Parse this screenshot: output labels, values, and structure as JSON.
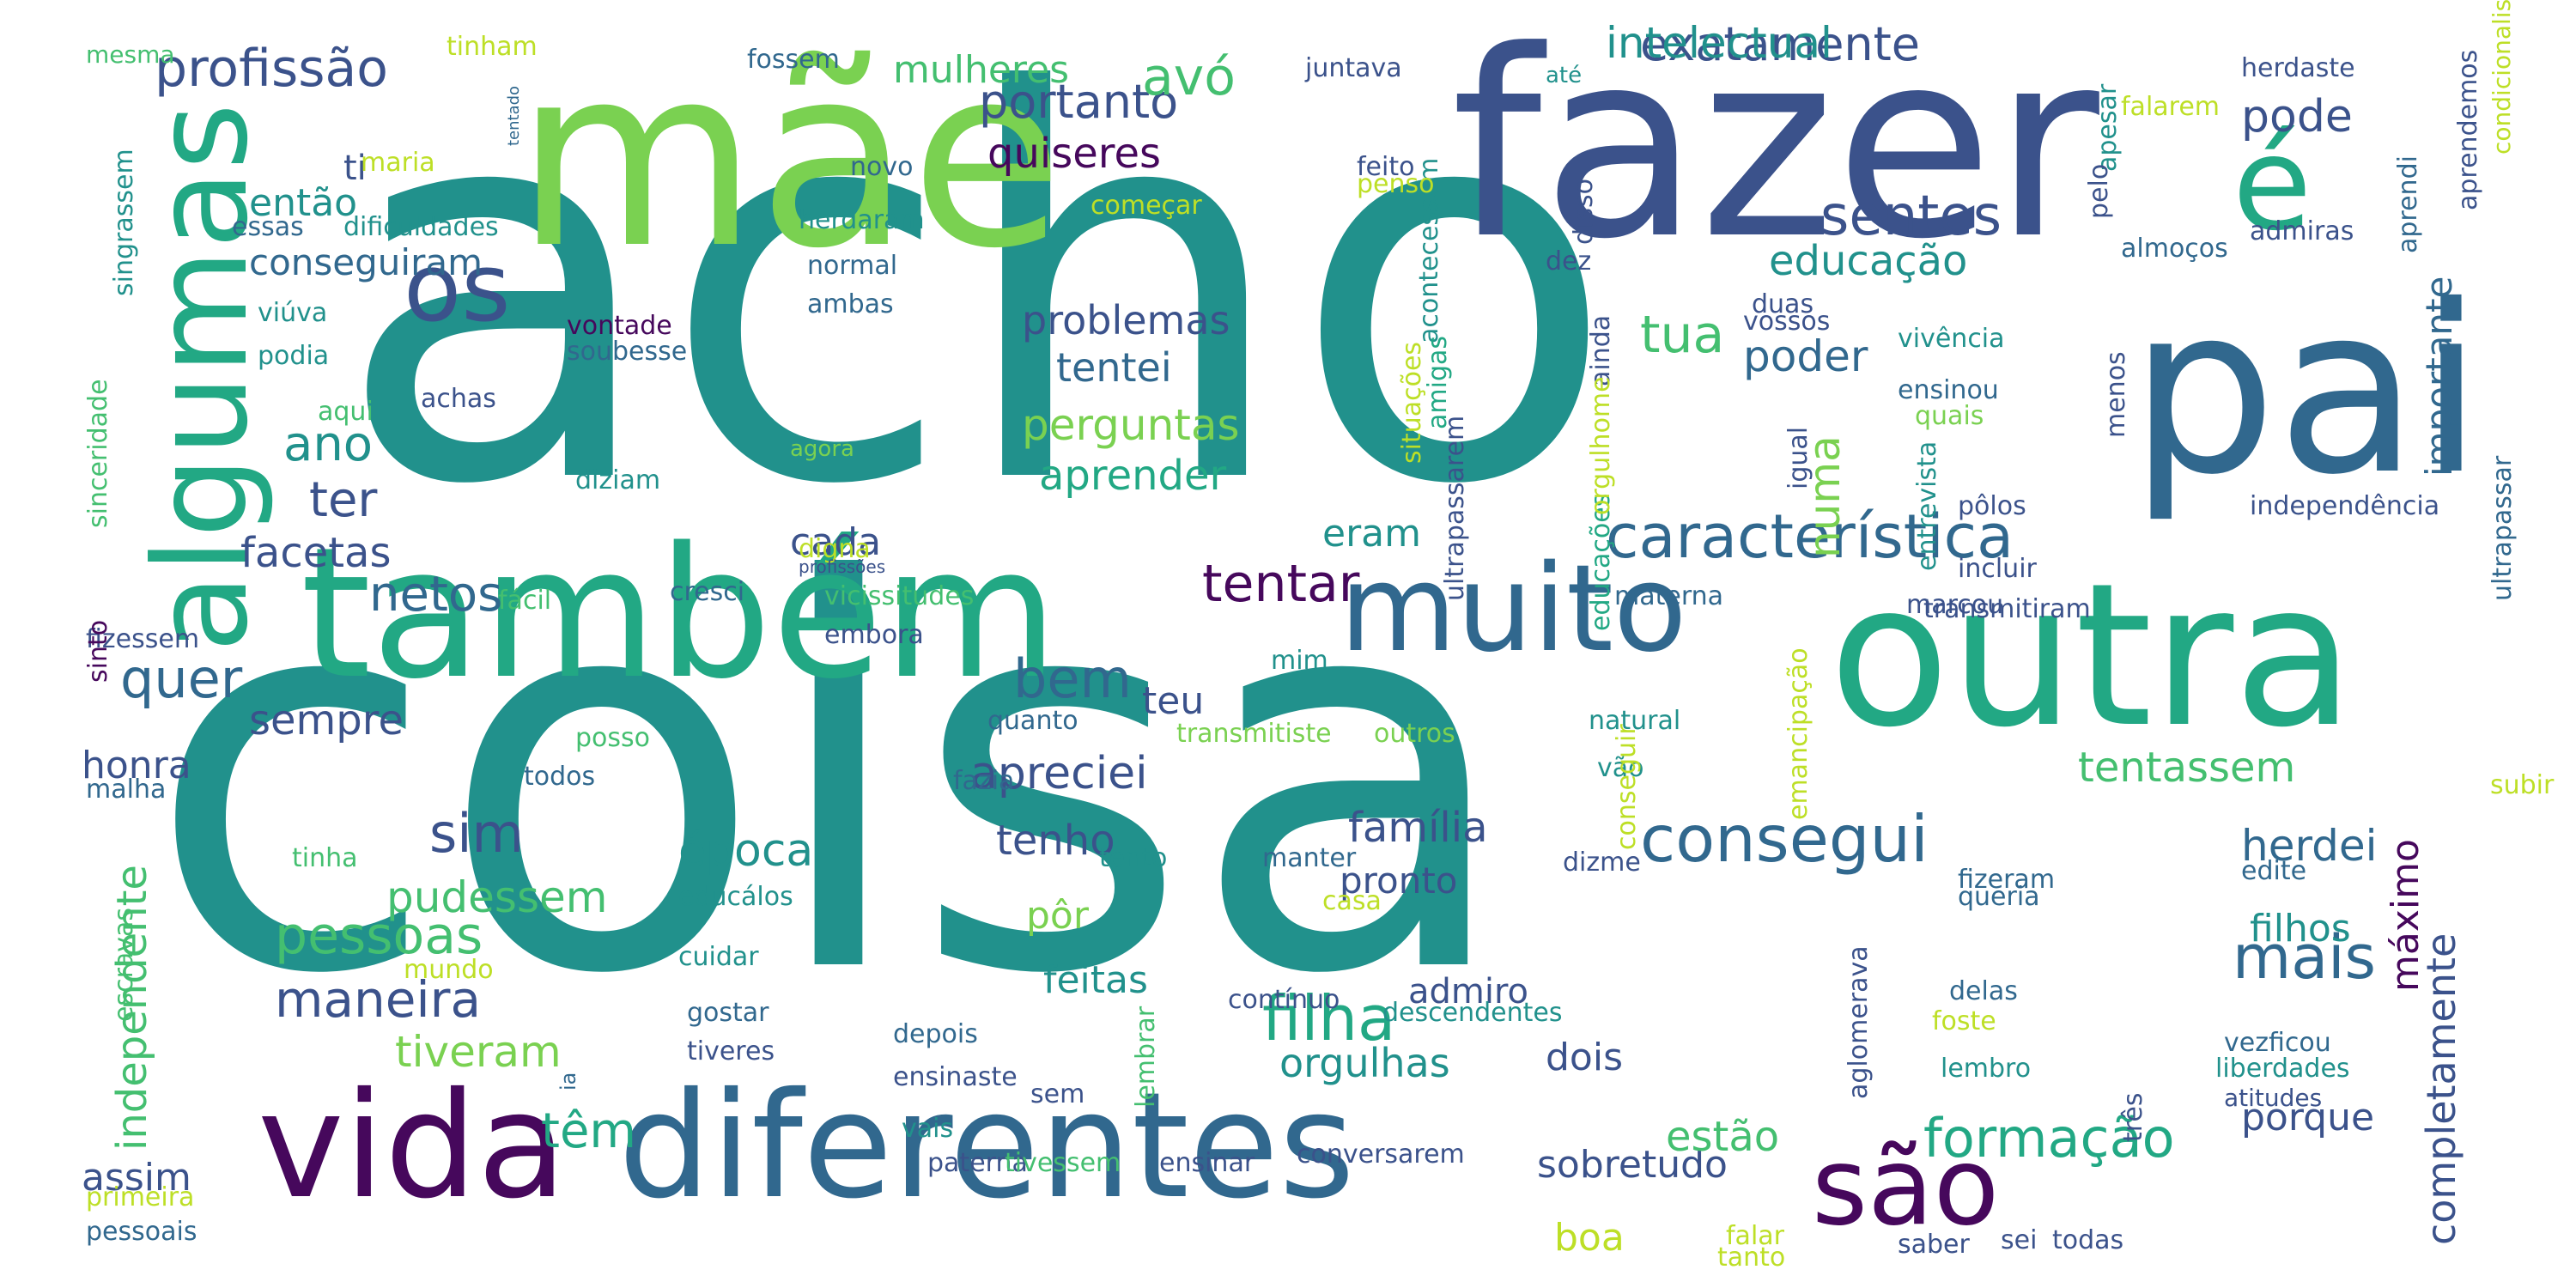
{
  "type": "word_cloud",
  "palette": {
    "background": "#ffffff",
    "deep_purple": "#46085c",
    "indigo": "#3b528b",
    "blue": "#31688e",
    "teal": "#21918c",
    "sea_green": "#22a884",
    "green": "#44bf70",
    "lime": "#7ad151",
    "yellow_green": "#bddf26"
  },
  "words": [
    {
      "text": "acho",
      "rank": 1,
      "color": "#21918c"
    },
    {
      "text": "coisa",
      "rank": 2,
      "color": "#21918c"
    },
    {
      "text": "fazer",
      "rank": 3,
      "color": "#3b528b"
    },
    {
      "text": "mãe",
      "rank": 4,
      "color": "#7ad151"
    },
    {
      "text": "pai",
      "rank": 5,
      "color": "#31688e"
    },
    {
      "text": "outra",
      "rank": 6,
      "color": "#22a884"
    },
    {
      "text": "também",
      "rank": 7,
      "color": "#22a884"
    },
    {
      "text": "vida",
      "rank": 8,
      "color": "#46085c"
    },
    {
      "text": "diferentes",
      "rank": 9,
      "color": "#31688e"
    },
    {
      "text": "algumas",
      "rank": 10,
      "color": "#22a884"
    },
    {
      "text": "muito",
      "rank": 11,
      "color": "#31688e"
    },
    {
      "text": "é",
      "rank": 12,
      "color": "#22a884"
    },
    {
      "text": "os",
      "rank": 13,
      "color": "#3b528b"
    },
    {
      "text": "são",
      "rank": 14,
      "color": "#46085c"
    },
    {
      "text": "característica",
      "rank": 15,
      "color": "#31688e"
    },
    {
      "text": "consegui",
      "rank": 16,
      "color": "#31688e"
    },
    {
      "text": "filha",
      "rank": 17,
      "color": "#22a884"
    },
    {
      "text": "mais",
      "rank": 18,
      "color": "#31688e"
    },
    {
      "text": "portanto",
      "rank": 19,
      "color": "#3b528b"
    },
    {
      "text": "exatamente",
      "rank": 20,
      "color": "#3b528b"
    },
    {
      "text": "sentes",
      "rank": 21,
      "color": "#3b528b"
    },
    {
      "text": "intelectual",
      "rank": 22,
      "color": "#21918c"
    },
    {
      "text": "profissão",
      "rank": 23,
      "color": "#3b528b"
    },
    {
      "text": "avó",
      "rank": 24,
      "color": "#44bf70"
    },
    {
      "text": "educação",
      "rank": 25,
      "color": "#21918c"
    },
    {
      "text": "tua",
      "rank": 26,
      "color": "#44bf70"
    },
    {
      "text": "pode",
      "rank": 27,
      "color": "#3b528b"
    },
    {
      "text": "quiseres",
      "rank": 28,
      "color": "#46085c"
    },
    {
      "text": "mulheres",
      "rank": 29,
      "color": "#44bf70"
    },
    {
      "text": "conseguiram",
      "rank": 30,
      "color": "#31688e"
    },
    {
      "text": "problemas",
      "rank": 31,
      "color": "#3b528b"
    },
    {
      "text": "tentei",
      "rank": 32,
      "color": "#31688e"
    },
    {
      "text": "perguntas",
      "rank": 33,
      "color": "#7ad151"
    },
    {
      "text": "aprender",
      "rank": 34,
      "color": "#22a884"
    },
    {
      "text": "netos",
      "rank": 35,
      "color": "#31688e"
    },
    {
      "text": "quer",
      "rank": 36,
      "color": "#31688e"
    },
    {
      "text": "bem",
      "rank": 37,
      "color": "#31688e"
    },
    {
      "text": "tentar",
      "rank": 38,
      "color": "#46085c"
    },
    {
      "text": "poder",
      "rank": 39,
      "color": "#31688e"
    },
    {
      "text": "ano",
      "rank": 40,
      "color": "#21918c"
    },
    {
      "text": "ter",
      "rank": 41,
      "color": "#3b528b"
    },
    {
      "text": "facetas",
      "rank": 42,
      "color": "#3b528b"
    },
    {
      "text": "cada",
      "rank": 43,
      "color": "#3b528b"
    },
    {
      "text": "eram",
      "rank": 44,
      "color": "#21918c"
    },
    {
      "text": "sim",
      "rank": 45,
      "color": "#3b528b"
    },
    {
      "text": "pessoas",
      "rank": 46,
      "color": "#44bf70"
    },
    {
      "text": "maneira",
      "rank": 47,
      "color": "#3b528b"
    },
    {
      "text": "pudessem",
      "rank": 48,
      "color": "#44bf70"
    },
    {
      "text": "época",
      "rank": 49,
      "color": "#21918c"
    },
    {
      "text": "apreciei",
      "rank": 50,
      "color": "#3b528b"
    },
    {
      "text": "tenho",
      "rank": 51,
      "color": "#3b528b"
    },
    {
      "text": "família",
      "rank": 52,
      "color": "#3b528b"
    },
    {
      "text": "pronto",
      "rank": 53,
      "color": "#3b528b"
    },
    {
      "text": "formação",
      "rank": 54,
      "color": "#22a884"
    },
    {
      "text": "têm",
      "rank": 55,
      "color": "#22a884"
    },
    {
      "text": "herdei",
      "rank": 56,
      "color": "#31688e"
    },
    {
      "text": "filhos",
      "rank": 57,
      "color": "#21918c"
    },
    {
      "text": "completamente",
      "rank": 58,
      "color": "#3b528b"
    },
    {
      "text": "máximo",
      "rank": 59,
      "color": "#46085c"
    },
    {
      "text": "importante",
      "rank": 60,
      "color": "#31688e"
    },
    {
      "text": "numa",
      "rank": 61,
      "color": "#7ad151"
    },
    {
      "text": "tentassem",
      "rank": 62,
      "color": "#44bf70"
    },
    {
      "text": "teu",
      "rank": 63,
      "color": "#3b528b"
    },
    {
      "text": "sempre",
      "rank": 64,
      "color": "#3b528b"
    },
    {
      "text": "honra",
      "rank": 65,
      "color": "#3b528b"
    },
    {
      "text": "independente",
      "rank": 66,
      "color": "#44bf70"
    },
    {
      "text": "assim",
      "rank": 67,
      "color": "#3b528b"
    },
    {
      "text": "tiveram",
      "rank": 68,
      "color": "#7ad151"
    },
    {
      "text": "pôr",
      "rank": 69,
      "color": "#7ad151"
    },
    {
      "text": "feitas",
      "rank": 70,
      "color": "#21918c"
    },
    {
      "text": "admiro",
      "rank": 71,
      "color": "#3b528b"
    },
    {
      "text": "orgulhas",
      "rank": 72,
      "color": "#21918c"
    },
    {
      "text": "dois",
      "rank": 73,
      "color": "#3b528b"
    },
    {
      "text": "sobretudo",
      "rank": 74,
      "color": "#3b528b"
    },
    {
      "text": "estão",
      "rank": 75,
      "color": "#44bf70"
    },
    {
      "text": "boa",
      "rank": 76,
      "color": "#bddf26"
    },
    {
      "text": "porque",
      "rank": 77,
      "color": "#3b528b"
    },
    {
      "text": "então",
      "rank": 78,
      "color": "#21918c"
    },
    {
      "text": "ti",
      "rank": 79,
      "color": "#3b528b"
    },
    {
      "text": "começar",
      "rank": 80,
      "color": "#bddf26"
    },
    {
      "text": "herdaram",
      "rank": 81,
      "color": "#21918c"
    },
    {
      "text": "normal",
      "rank": 82,
      "color": "#31688e"
    },
    {
      "text": "ambas",
      "rank": 83,
      "color": "#31688e"
    },
    {
      "text": "acontecessem",
      "rank": 84,
      "color": "#21918c"
    },
    {
      "text": "feito",
      "rank": 85,
      "color": "#3b528b"
    },
    {
      "text": "penso",
      "rank": 86,
      "color": "#bddf26"
    },
    {
      "text": "disso",
      "rank": 87,
      "color": "#3b528b"
    },
    {
      "text": "juntava",
      "rank": 88,
      "color": "#3b528b"
    },
    {
      "text": "até",
      "rank": 89,
      "color": "#21918c"
    },
    {
      "text": "fossem",
      "rank": 90,
      "color": "#31688e"
    },
    {
      "text": "tinham",
      "rank": 91,
      "color": "#bddf26"
    },
    {
      "text": "mesma",
      "rank": 92,
      "color": "#44bf70"
    },
    {
      "text": "tentado",
      "rank": 93,
      "color": "#31688e"
    },
    {
      "text": "maria",
      "rank": 94,
      "color": "#bddf26"
    },
    {
      "text": "essas",
      "rank": 95,
      "color": "#31688e"
    },
    {
      "text": "dificuldades",
      "rank": 96,
      "color": "#21918c"
    },
    {
      "text": "singrassem",
      "rank": 97,
      "color": "#21918c"
    },
    {
      "text": "novo",
      "rank": 98,
      "color": "#31688e"
    },
    {
      "text": "vontade",
      "rank": 99,
      "color": "#46085c"
    },
    {
      "text": "soubesse",
      "rank": 100,
      "color": "#31688e"
    },
    {
      "text": "viúva",
      "rank": 101,
      "color": "#21918c"
    },
    {
      "text": "podia",
      "rank": 102,
      "color": "#21918c"
    },
    {
      "text": "sinceridade",
      "rank": 103,
      "color": "#44bf70"
    },
    {
      "text": "aqui",
      "rank": 104,
      "color": "#44bf70"
    },
    {
      "text": "achas",
      "rank": 105,
      "color": "#3b528b"
    },
    {
      "text": "agora",
      "rank": 106,
      "color": "#7ad151"
    },
    {
      "text": "diziam",
      "rank": 107,
      "color": "#21918c"
    },
    {
      "text": "digna",
      "rank": 108,
      "color": "#bddf26"
    },
    {
      "text": "profissões",
      "rank": 109,
      "color": "#3b528b"
    },
    {
      "text": "fácil",
      "rank": 110,
      "color": "#44bf70"
    },
    {
      "text": "cresci",
      "rank": 111,
      "color": "#31688e"
    },
    {
      "text": "fizessem",
      "rank": 112,
      "color": "#3b528b"
    },
    {
      "text": "sinto",
      "rank": 113,
      "color": "#46085c"
    },
    {
      "text": "vicissitudes",
      "rank": 114,
      "color": "#44bf70"
    },
    {
      "text": "embora",
      "rank": 115,
      "color": "#3b528b"
    },
    {
      "text": "mim",
      "rank": 116,
      "color": "#21918c"
    },
    {
      "text": "quanto",
      "rank": 117,
      "color": "#31688e"
    },
    {
      "text": "transmitiste",
      "rank": 118,
      "color": "#7ad151"
    },
    {
      "text": "outros",
      "rank": 119,
      "color": "#7ad151"
    },
    {
      "text": "posso",
      "rank": 120,
      "color": "#44bf70"
    },
    {
      "text": "todos",
      "rank": 121,
      "color": "#31688e"
    },
    {
      "text": "malha",
      "rank": 122,
      "color": "#31688e"
    },
    {
      "text": "fazia",
      "rank": 123,
      "color": "#31688e"
    },
    {
      "text": "tinha",
      "rank": 124,
      "color": "#44bf70"
    },
    {
      "text": "educálos",
      "rank": 125,
      "color": "#21918c"
    },
    {
      "text": "mundo",
      "rank": 126,
      "color": "#bddf26"
    },
    {
      "text": "tento",
      "rank": 127,
      "color": "#21918c"
    },
    {
      "text": "manter",
      "rank": 128,
      "color": "#31688e"
    },
    {
      "text": "casa",
      "rank": 129,
      "color": "#bddf26"
    },
    {
      "text": "cuidar",
      "rank": 130,
      "color": "#21918c"
    },
    {
      "text": "gostar",
      "rank": 131,
      "color": "#31688e"
    },
    {
      "text": "tiveres",
      "rank": 132,
      "color": "#3b528b"
    },
    {
      "text": "depois",
      "rank": 133,
      "color": "#31688e"
    },
    {
      "text": "ensinaste",
      "rank": 134,
      "color": "#3b528b"
    },
    {
      "text": "sem",
      "rank": 135,
      "color": "#3b528b"
    },
    {
      "text": "vais",
      "rank": 136,
      "color": "#21918c"
    },
    {
      "text": "paterna",
      "rank": 137,
      "color": "#3b528b"
    },
    {
      "text": "ensinar",
      "rank": 138,
      "color": "#3b528b"
    },
    {
      "text": "tivessem",
      "rank": 139,
      "color": "#44bf70"
    },
    {
      "text": "conversarem",
      "rank": 140,
      "color": "#3b528b"
    },
    {
      "text": "escravas",
      "rank": 141,
      "color": "#44bf70"
    },
    {
      "text": "ia",
      "rank": 142,
      "color": "#31688e"
    },
    {
      "text": "primeira",
      "rank": 143,
      "color": "#bddf26"
    },
    {
      "text": "pessoais",
      "rank": 144,
      "color": "#31688e"
    },
    {
      "text": "lembrar",
      "rank": 145,
      "color": "#44bf70"
    },
    {
      "text": "contínuo",
      "rank": 146,
      "color": "#3b528b"
    },
    {
      "text": "descendentes",
      "rank": 147,
      "color": "#21918c"
    },
    {
      "text": "situações",
      "rank": 148,
      "color": "#bddf26"
    },
    {
      "text": "amigas",
      "rank": 149,
      "color": "#22a884"
    },
    {
      "text": "ultrapassarem",
      "rank": 150,
      "color": "#3b528b"
    },
    {
      "text": "ainda",
      "rank": 151,
      "color": "#3b528b"
    },
    {
      "text": "educações",
      "rank": 152,
      "color": "#22a884"
    },
    {
      "text": "orgulhome",
      "rank": 153,
      "color": "#bddf26"
    },
    {
      "text": "dez",
      "rank": 154,
      "color": "#3b528b"
    },
    {
      "text": "natural",
      "rank": 155,
      "color": "#21918c"
    },
    {
      "text": "vão",
      "rank": 156,
      "color": "#21918c"
    },
    {
      "text": "dizme",
      "rank": 157,
      "color": "#3b528b"
    },
    {
      "text": "emancipação",
      "rank": 158,
      "color": "#bddf26"
    },
    {
      "text": "materna",
      "rank": 159,
      "color": "#31688e"
    },
    {
      "text": "conseguir",
      "rank": 160,
      "color": "#bddf26"
    },
    {
      "text": "aglomerava",
      "rank": 161,
      "color": "#3b528b"
    },
    {
      "text": "falar",
      "rank": 162,
      "color": "#bddf26"
    },
    {
      "text": "tanto",
      "rank": 163,
      "color": "#bddf26"
    },
    {
      "text": "saber",
      "rank": 164,
      "color": "#3b528b"
    },
    {
      "text": "sei",
      "rank": 165,
      "color": "#3b528b"
    },
    {
      "text": "todas",
      "rank": 166,
      "color": "#3b528b"
    },
    {
      "text": "apesar",
      "rank": 167,
      "color": "#21918c"
    },
    {
      "text": "pelo",
      "rank": 168,
      "color": "#3b528b"
    },
    {
      "text": "falarem",
      "rank": 169,
      "color": "#bddf26"
    },
    {
      "text": "herdaste",
      "rank": 170,
      "color": "#3b528b"
    },
    {
      "text": "aprendemos",
      "rank": 171,
      "color": "#3b528b"
    },
    {
      "text": "condicionalismos",
      "rank": 172,
      "color": "#bddf26"
    },
    {
      "text": "admiras",
      "rank": 173,
      "color": "#3b528b"
    },
    {
      "text": "almoços",
      "rank": 174,
      "color": "#31688e"
    },
    {
      "text": "aprendi",
      "rank": 175,
      "color": "#31688e"
    },
    {
      "text": "vossos",
      "rank": 176,
      "color": "#3b528b"
    },
    {
      "text": "duas",
      "rank": 177,
      "color": "#3b528b"
    },
    {
      "text": "vivência",
      "rank": 178,
      "color": "#21918c"
    },
    {
      "text": "ensinou",
      "rank": 179,
      "color": "#31688e"
    },
    {
      "text": "quais",
      "rank": 180,
      "color": "#7ad151"
    },
    {
      "text": "menos",
      "rank": 181,
      "color": "#3b528b"
    },
    {
      "text": "igual",
      "rank": 182,
      "color": "#3b528b"
    },
    {
      "text": "pôlos",
      "rank": 183,
      "color": "#3b528b"
    },
    {
      "text": "independência",
      "rank": 184,
      "color": "#3b528b"
    },
    {
      "text": "incluir",
      "rank": 185,
      "color": "#3b528b"
    },
    {
      "text": "marcou",
      "rank": 186,
      "color": "#3b528b"
    },
    {
      "text": "transmitiram",
      "rank": 187,
      "color": "#3b528b"
    },
    {
      "text": "entrevista",
      "rank": 188,
      "color": "#21918c"
    },
    {
      "text": "ultrapassar",
      "rank": 189,
      "color": "#31688e"
    },
    {
      "text": "subir",
      "rank": 190,
      "color": "#bddf26"
    },
    {
      "text": "edite",
      "rank": 191,
      "color": "#31688e"
    },
    {
      "text": "fizeram",
      "rank": 192,
      "color": "#31688e"
    },
    {
      "text": "queria",
      "rank": 193,
      "color": "#31688e"
    },
    {
      "text": "delas",
      "rank": 194,
      "color": "#31688e"
    },
    {
      "text": "foste",
      "rank": 195,
      "color": "#bddf26"
    },
    {
      "text": "lembro",
      "rank": 196,
      "color": "#21918c"
    },
    {
      "text": "vezficou",
      "rank": 197,
      "color": "#31688e"
    },
    {
      "text": "liberdades",
      "rank": 198,
      "color": "#21918c"
    },
    {
      "text": "atitudes",
      "rank": 199,
      "color": "#3b528b"
    },
    {
      "text": "três",
      "rank": 200,
      "color": "#3b528b"
    }
  ]
}
